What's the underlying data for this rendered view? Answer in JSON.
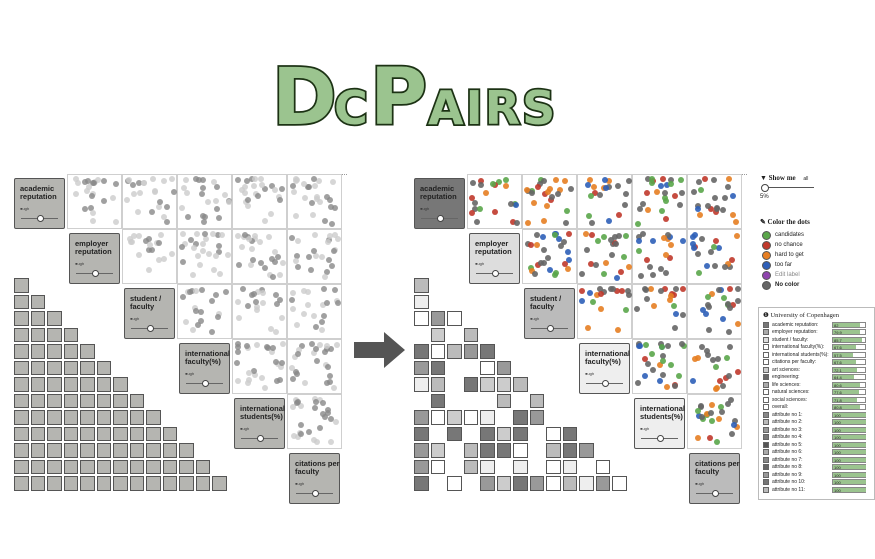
{
  "logo": {
    "text": "DcPairs"
  },
  "attributes": [
    {
      "label": "academic reputation",
      "sub": "●ugh"
    },
    {
      "label": "employer reputation",
      "sub": "●ugh"
    },
    {
      "label": "student / faculty",
      "sub": "●ugh"
    },
    {
      "label": "international faculty(%)",
      "sub": "●ugh"
    },
    {
      "label": "international students(%)",
      "sub": "●ugh"
    },
    {
      "label": "citations per faculty",
      "sub": "●ugh"
    }
  ],
  "controls": {
    "show_me_label": "Show me",
    "show_me_option": "all",
    "percent": "5%",
    "color_title": "Color the dots",
    "legend": [
      {
        "label": "candidates",
        "color": "#5aa64a"
      },
      {
        "label": "no chance",
        "color": "#c0392b"
      },
      {
        "label": "hard to get",
        "color": "#e67e22"
      },
      {
        "label": "too far",
        "color": "#2e5fb8"
      },
      {
        "label": "Edit label",
        "color": "#8e44ad"
      },
      {
        "label": "No color",
        "color": "#666666"
      }
    ]
  },
  "university": {
    "name": "University of Copenhagen",
    "rows": [
      {
        "name": "academic reputation:",
        "value": "82",
        "fill": 0.82,
        "swatch": "#777"
      },
      {
        "name": "employer reputation:",
        "value": "79.9",
        "fill": 0.8,
        "swatch": "#aaa"
      },
      {
        "name": "student / faculty:",
        "value": "85.7",
        "fill": 0.86,
        "swatch": "#ddd"
      },
      {
        "name": "international faculty(%):",
        "value": "67.6",
        "fill": 0.68,
        "swatch": "#fff"
      },
      {
        "name": "international students(%):",
        "value": "57.5",
        "fill": 0.58,
        "swatch": "#fff"
      },
      {
        "name": "citations per faculty:",
        "value": "67.6",
        "fill": 0.68,
        "swatch": "#fff"
      },
      {
        "name": "art sciences:",
        "value": "72.1",
        "fill": 0.72,
        "swatch": "#ccc"
      },
      {
        "name": "engineering:",
        "value": "64.4",
        "fill": 0.64,
        "swatch": "#666"
      },
      {
        "name": "life sciences:",
        "value": "80.6",
        "fill": 0.81,
        "swatch": "#aaa"
      },
      {
        "name": "natural sciences:",
        "value": "77.6",
        "fill": 0.78,
        "swatch": "#fff"
      },
      {
        "name": "social sciences:",
        "value": "71.8",
        "fill": 0.72,
        "swatch": "#fff"
      },
      {
        "name": "overall:",
        "value": "80.8",
        "fill": 0.81,
        "swatch": "#fff"
      },
      {
        "name": "attribute no 1:",
        "value": "100",
        "fill": 1,
        "swatch": "#888"
      },
      {
        "name": "attribute no 2:",
        "value": "100",
        "fill": 1,
        "swatch": "#bbb"
      },
      {
        "name": "attribute no 3:",
        "value": "100",
        "fill": 1,
        "swatch": "#999"
      },
      {
        "name": "attribute no 4:",
        "value": "100",
        "fill": 1,
        "swatch": "#777"
      },
      {
        "name": "attribute no 5:",
        "value": "100",
        "fill": 1,
        "swatch": "#555"
      },
      {
        "name": "attribute no 6:",
        "value": "100",
        "fill": 1,
        "swatch": "#aaa"
      },
      {
        "name": "attribute no 7:",
        "value": "100",
        "fill": 1,
        "swatch": "#888"
      },
      {
        "name": "attribute no 8:",
        "value": "100",
        "fill": 1,
        "swatch": "#666"
      },
      {
        "name": "attribute no 9:",
        "value": "100",
        "fill": 1,
        "swatch": "#999"
      },
      {
        "name": "attribute no 10:",
        "value": "100",
        "fill": 1,
        "swatch": "#777"
      },
      {
        "name": "attribute no 11:",
        "value": "100",
        "fill": 1,
        "swatch": "#bbb"
      }
    ]
  }
}
